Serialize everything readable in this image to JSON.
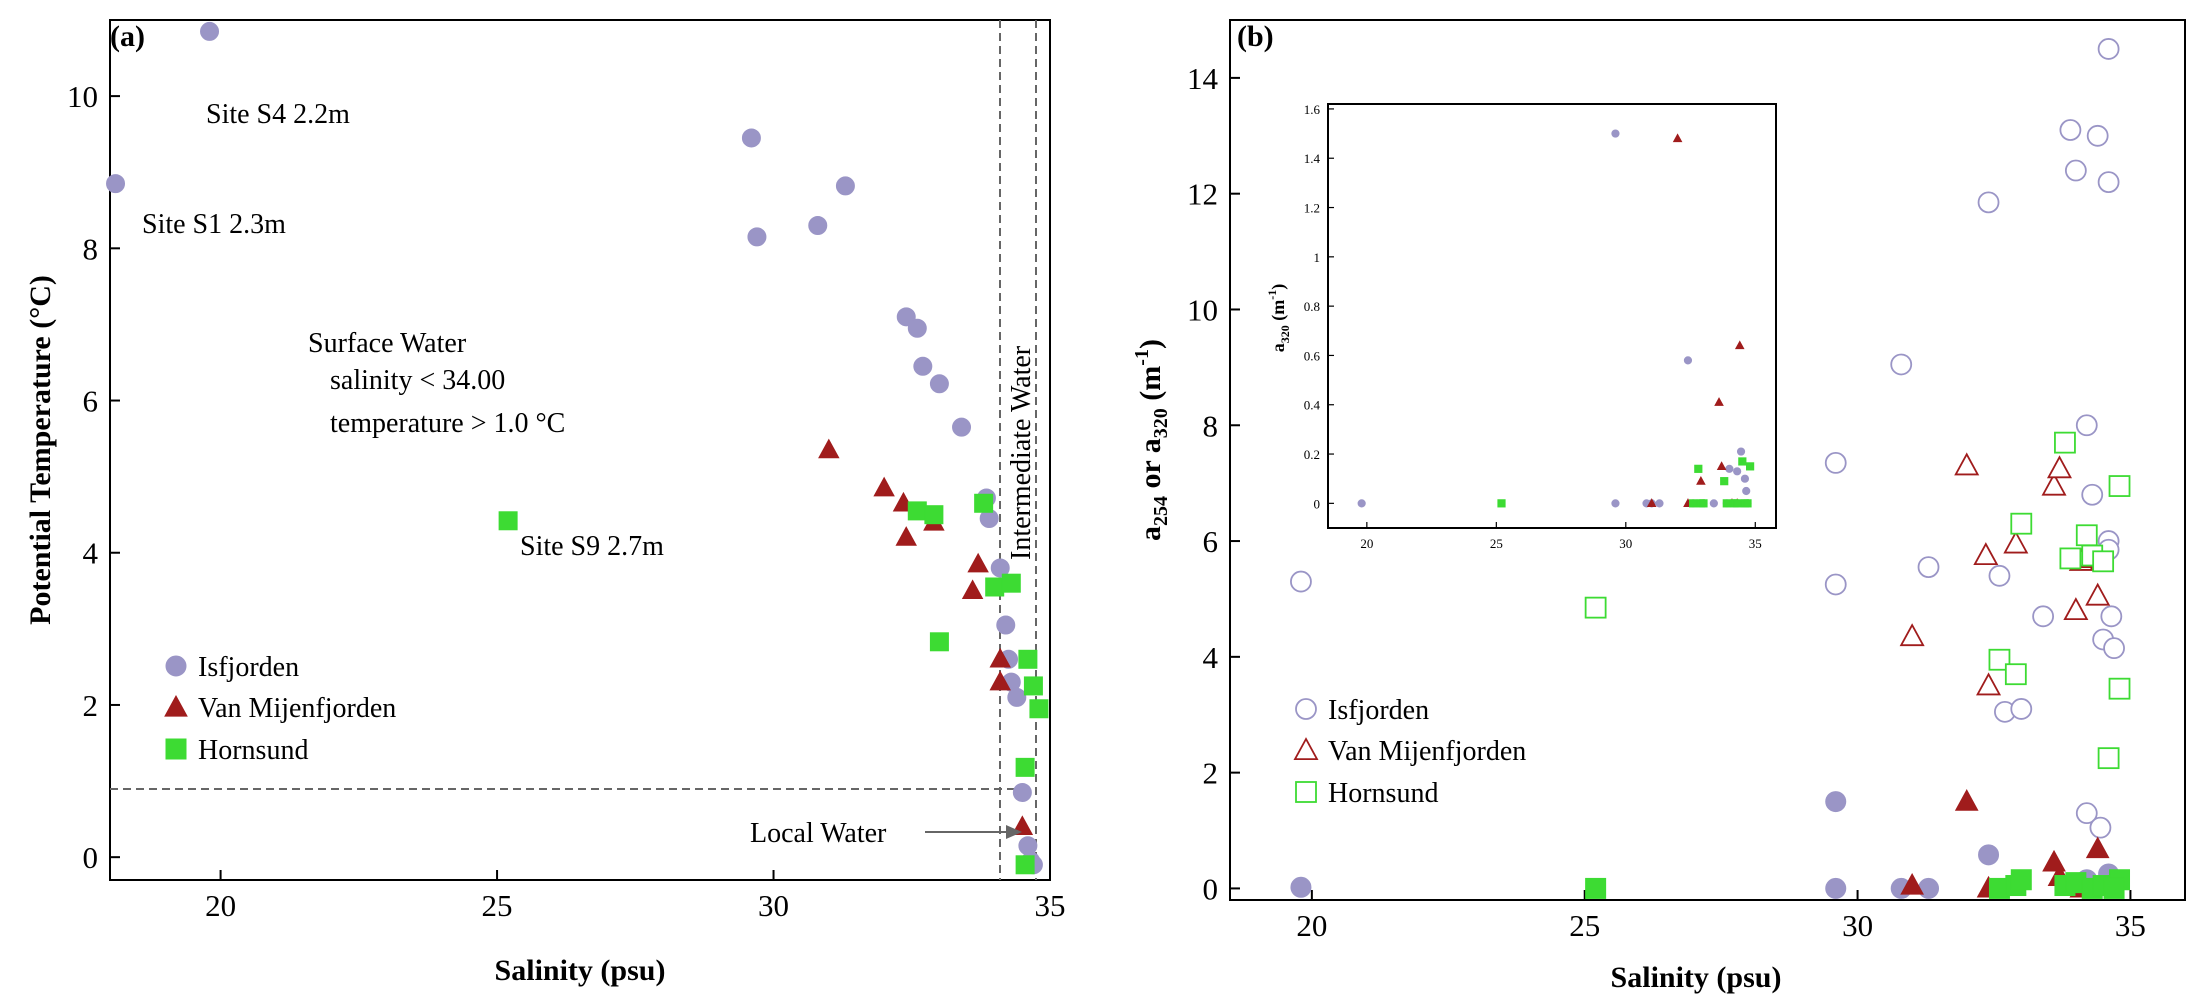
{
  "colors": {
    "isfjorden": "#9a95c6",
    "van_mijenfjorden": "#a01c1c",
    "hornsund": "#3ddb33"
  },
  "chart_data": [
    {
      "panel": "a",
      "label": "(a)",
      "type": "scatter",
      "xlabel": "Salinity (psu)",
      "ylabel": "Potential Temperature (°C)",
      "xlim": [
        18,
        35
      ],
      "ylim": [
        -0.3,
        11
      ],
      "xticks": [
        20,
        25,
        30,
        35
      ],
      "yticks": [
        0,
        2,
        4,
        6,
        8,
        10
      ],
      "legend_position": "bottom-left",
      "series": [
        {
          "name": "Isfjorden",
          "marker": "circle",
          "filled": true,
          "color_key": "isfjorden",
          "points": [
            [
              19.8,
              10.85
            ],
            [
              18.1,
              8.85
            ],
            [
              29.6,
              9.45
            ],
            [
              31.3,
              8.82
            ],
            [
              30.8,
              8.3
            ],
            [
              29.7,
              8.15
            ],
            [
              32.4,
              7.1
            ],
            [
              32.6,
              6.95
            ],
            [
              32.7,
              6.45
            ],
            [
              33.0,
              6.22
            ],
            [
              33.4,
              5.65
            ],
            [
              33.85,
              4.72
            ],
            [
              33.9,
              4.45
            ],
            [
              34.1,
              3.8
            ],
            [
              34.2,
              3.05
            ],
            [
              34.25,
              2.6
            ],
            [
              34.3,
              2.3
            ],
            [
              34.4,
              2.1
            ],
            [
              34.5,
              0.85
            ],
            [
              34.6,
              0.15
            ],
            [
              34.65,
              -0.05
            ],
            [
              34.7,
              -0.1
            ]
          ]
        },
        {
          "name": "Van Mijenfjorden",
          "marker": "triangle",
          "filled": true,
          "color_key": "van_mijenfjorden",
          "points": [
            [
              31.0,
              5.35
            ],
            [
              32.0,
              4.85
            ],
            [
              32.35,
              4.65
            ],
            [
              32.4,
              4.2
            ],
            [
              32.9,
              4.4
            ],
            [
              33.7,
              3.85
            ],
            [
              33.6,
              3.5
            ],
            [
              34.1,
              2.6
            ],
            [
              34.1,
              2.3
            ],
            [
              34.5,
              0.4
            ]
          ]
        },
        {
          "name": "Hornsund",
          "marker": "square",
          "filled": true,
          "color_key": "hornsund",
          "points": [
            [
              25.2,
              4.42
            ],
            [
              32.6,
              4.55
            ],
            [
              32.9,
              4.5
            ],
            [
              33.8,
              4.65
            ],
            [
              34.0,
              3.55
            ],
            [
              34.3,
              3.6
            ],
            [
              33.0,
              2.83
            ],
            [
              34.6,
              2.6
            ],
            [
              34.7,
              2.25
            ],
            [
              34.8,
              1.95
            ],
            [
              34.55,
              1.18
            ],
            [
              34.55,
              -0.1
            ]
          ]
        }
      ],
      "annotations": [
        "Site S4 2.2m",
        "Site S1 2.3m",
        "Site S9 2.7m",
        "Surface Water",
        "salinity < 34.00",
        "temperature > 1.0 °C",
        "Intermediate Water",
        "Local Water"
      ]
    },
    {
      "panel": "b",
      "label": "(b)",
      "type": "scatter",
      "xlabel": "Salinity (psu)",
      "ylabel": "a254 or a320 (m-1)",
      "xlim": [
        18.5,
        36
      ],
      "ylim": [
        -0.2,
        15
      ],
      "xticks": [
        20,
        25,
        30,
        35
      ],
      "yticks": [
        0,
        2,
        4,
        6,
        8,
        10,
        12,
        14
      ],
      "legend_position": "bottom-left",
      "series": [
        {
          "name": "Isfjorden",
          "quantity": "a254",
          "marker": "circle",
          "filled": false,
          "color_key": "isfjorden",
          "points": [
            [
              19.8,
              5.3
            ],
            [
              29.6,
              7.35
            ],
            [
              29.6,
              5.25
            ],
            [
              30.8,
              9.05
            ],
            [
              31.3,
              5.55
            ],
            [
              32.4,
              11.85
            ],
            [
              32.6,
              5.4
            ],
            [
              32.7,
              3.05
            ],
            [
              33.0,
              3.1
            ],
            [
              33.4,
              4.7
            ],
            [
              33.9,
              13.1
            ],
            [
              34.0,
              12.4
            ],
            [
              34.2,
              8.0
            ],
            [
              34.3,
              6.8
            ],
            [
              34.4,
              13.0
            ],
            [
              34.5,
              4.3
            ],
            [
              34.6,
              14.5
            ],
            [
              34.6,
              12.2
            ],
            [
              34.6,
              6.0
            ],
            [
              34.6,
              5.85
            ],
            [
              34.65,
              4.7
            ],
            [
              34.7,
              4.15
            ],
            [
              34.2,
              1.3
            ],
            [
              34.45,
              1.05
            ]
          ]
        },
        {
          "name": "Van Mijenfjorden",
          "quantity": "a254",
          "marker": "triangle",
          "filled": false,
          "color_key": "van_mijenfjorden",
          "points": [
            [
              31.0,
              4.35
            ],
            [
              32.0,
              7.3
            ],
            [
              32.35,
              5.75
            ],
            [
              32.4,
              3.5
            ],
            [
              32.9,
              5.95
            ],
            [
              33.6,
              6.95
            ],
            [
              33.7,
              7.25
            ],
            [
              34.0,
              4.8
            ],
            [
              34.1,
              5.65
            ],
            [
              34.3,
              5.7
            ],
            [
              34.4,
              5.05
            ]
          ]
        },
        {
          "name": "Hornsund",
          "quantity": "a254",
          "marker": "square",
          "filled": false,
          "color_key": "hornsund",
          "points": [
            [
              25.2,
              4.85
            ],
            [
              32.6,
              3.95
            ],
            [
              32.9,
              3.7
            ],
            [
              33.0,
              6.3
            ],
            [
              33.8,
              7.7
            ],
            [
              33.9,
              5.7
            ],
            [
              34.2,
              6.1
            ],
            [
              34.3,
              5.75
            ],
            [
              34.5,
              5.65
            ],
            [
              34.6,
              2.25
            ],
            [
              34.8,
              3.45
            ],
            [
              34.8,
              6.95
            ]
          ]
        },
        {
          "name": "Isfjorden",
          "quantity": "a320",
          "marker": "circle",
          "filled": true,
          "color_key": "isfjorden",
          "points": [
            [
              19.8,
              0.02
            ],
            [
              29.6,
              1.5
            ],
            [
              29.6,
              0.0
            ],
            [
              30.8,
              0.0
            ],
            [
              31.3,
              0.0
            ],
            [
              32.4,
              0.58
            ],
            [
              34.2,
              0.15
            ],
            [
              34.6,
              0.25
            ],
            [
              34.65,
              0.1
            ],
            [
              34.3,
              0.05
            ]
          ]
        },
        {
          "name": "Van Mijenfjorden",
          "quantity": "a320",
          "marker": "triangle",
          "filled": true,
          "color_key": "van_mijenfjorden",
          "points": [
            [
              31.0,
              0.05
            ],
            [
              32.0,
              1.5
            ],
            [
              32.4,
              0.0
            ],
            [
              33.6,
              0.45
            ],
            [
              33.7,
              0.2
            ],
            [
              34.4,
              0.68
            ],
            [
              34.1,
              0.0
            ]
          ]
        },
        {
          "name": "Hornsund",
          "quantity": "a320",
          "marker": "square",
          "filled": true,
          "color_key": "hornsund",
          "points": [
            [
              25.2,
              0.0
            ],
            [
              32.6,
              0.0
            ],
            [
              32.9,
              0.05
            ],
            [
              33.0,
              0.15
            ],
            [
              33.8,
              0.05
            ],
            [
              34.0,
              0.1
            ],
            [
              34.3,
              0.0
            ],
            [
              34.5,
              0.05
            ],
            [
              34.8,
              0.15
            ],
            [
              34.7,
              0.0
            ]
          ]
        }
      ],
      "inset": {
        "ylabel": "a320 (m-1)",
        "xlim": [
          18.5,
          35.8
        ],
        "ylim": [
          -0.1,
          1.62
        ],
        "xticks": [
          20,
          25,
          30,
          35
        ],
        "yticks": [
          0,
          0.2,
          0.4,
          0.6,
          0.8,
          1,
          1.2,
          1.4,
          1.6
        ],
        "series": [
          {
            "name": "Isfjorden",
            "marker": "circle",
            "color_key": "isfjorden",
            "points": [
              [
                19.8,
                0.0
              ],
              [
                29.6,
                1.5
              ],
              [
                29.6,
                0.0
              ],
              [
                30.8,
                0.0
              ],
              [
                31.0,
                0.0
              ],
              [
                31.3,
                0.0
              ],
              [
                32.4,
                0.58
              ],
              [
                32.6,
                0.0
              ],
              [
                33.0,
                0.0
              ],
              [
                33.4,
                0.0
              ],
              [
                33.9,
                0.0
              ],
              [
                34.0,
                0.14
              ],
              [
                34.2,
                0.0
              ],
              [
                34.3,
                0.13
              ],
              [
                34.45,
                0.21
              ],
              [
                34.5,
                0.0
              ],
              [
                34.6,
                0.1
              ],
              [
                34.65,
                0.05
              ],
              [
                34.7,
                0.0
              ]
            ]
          },
          {
            "name": "Van Mijenfjorden",
            "marker": "triangle",
            "color_key": "van_mijenfjorden",
            "points": [
              [
                32.0,
                1.48
              ],
              [
                34.4,
                0.64
              ],
              [
                33.6,
                0.41
              ],
              [
                33.7,
                0.15
              ],
              [
                32.9,
                0.09
              ],
              [
                31.0,
                0.0
              ],
              [
                32.4,
                0.0
              ],
              [
                34.1,
                0.0
              ],
              [
                34.3,
                0.0
              ]
            ]
          },
          {
            "name": "Hornsund",
            "marker": "square",
            "color_key": "hornsund",
            "points": [
              [
                25.2,
                0.0
              ],
              [
                32.6,
                0.0
              ],
              [
                32.8,
                0.14
              ],
              [
                32.9,
                0.0
              ],
              [
                33.0,
                0.0
              ],
              [
                33.8,
                0.09
              ],
              [
                33.9,
                0.0
              ],
              [
                34.2,
                0.0
              ],
              [
                34.3,
                0.0
              ],
              [
                34.5,
                0.17
              ],
              [
                34.6,
                0.0
              ],
              [
                34.8,
                0.15
              ],
              [
                34.7,
                0.0
              ]
            ]
          }
        ]
      }
    }
  ]
}
